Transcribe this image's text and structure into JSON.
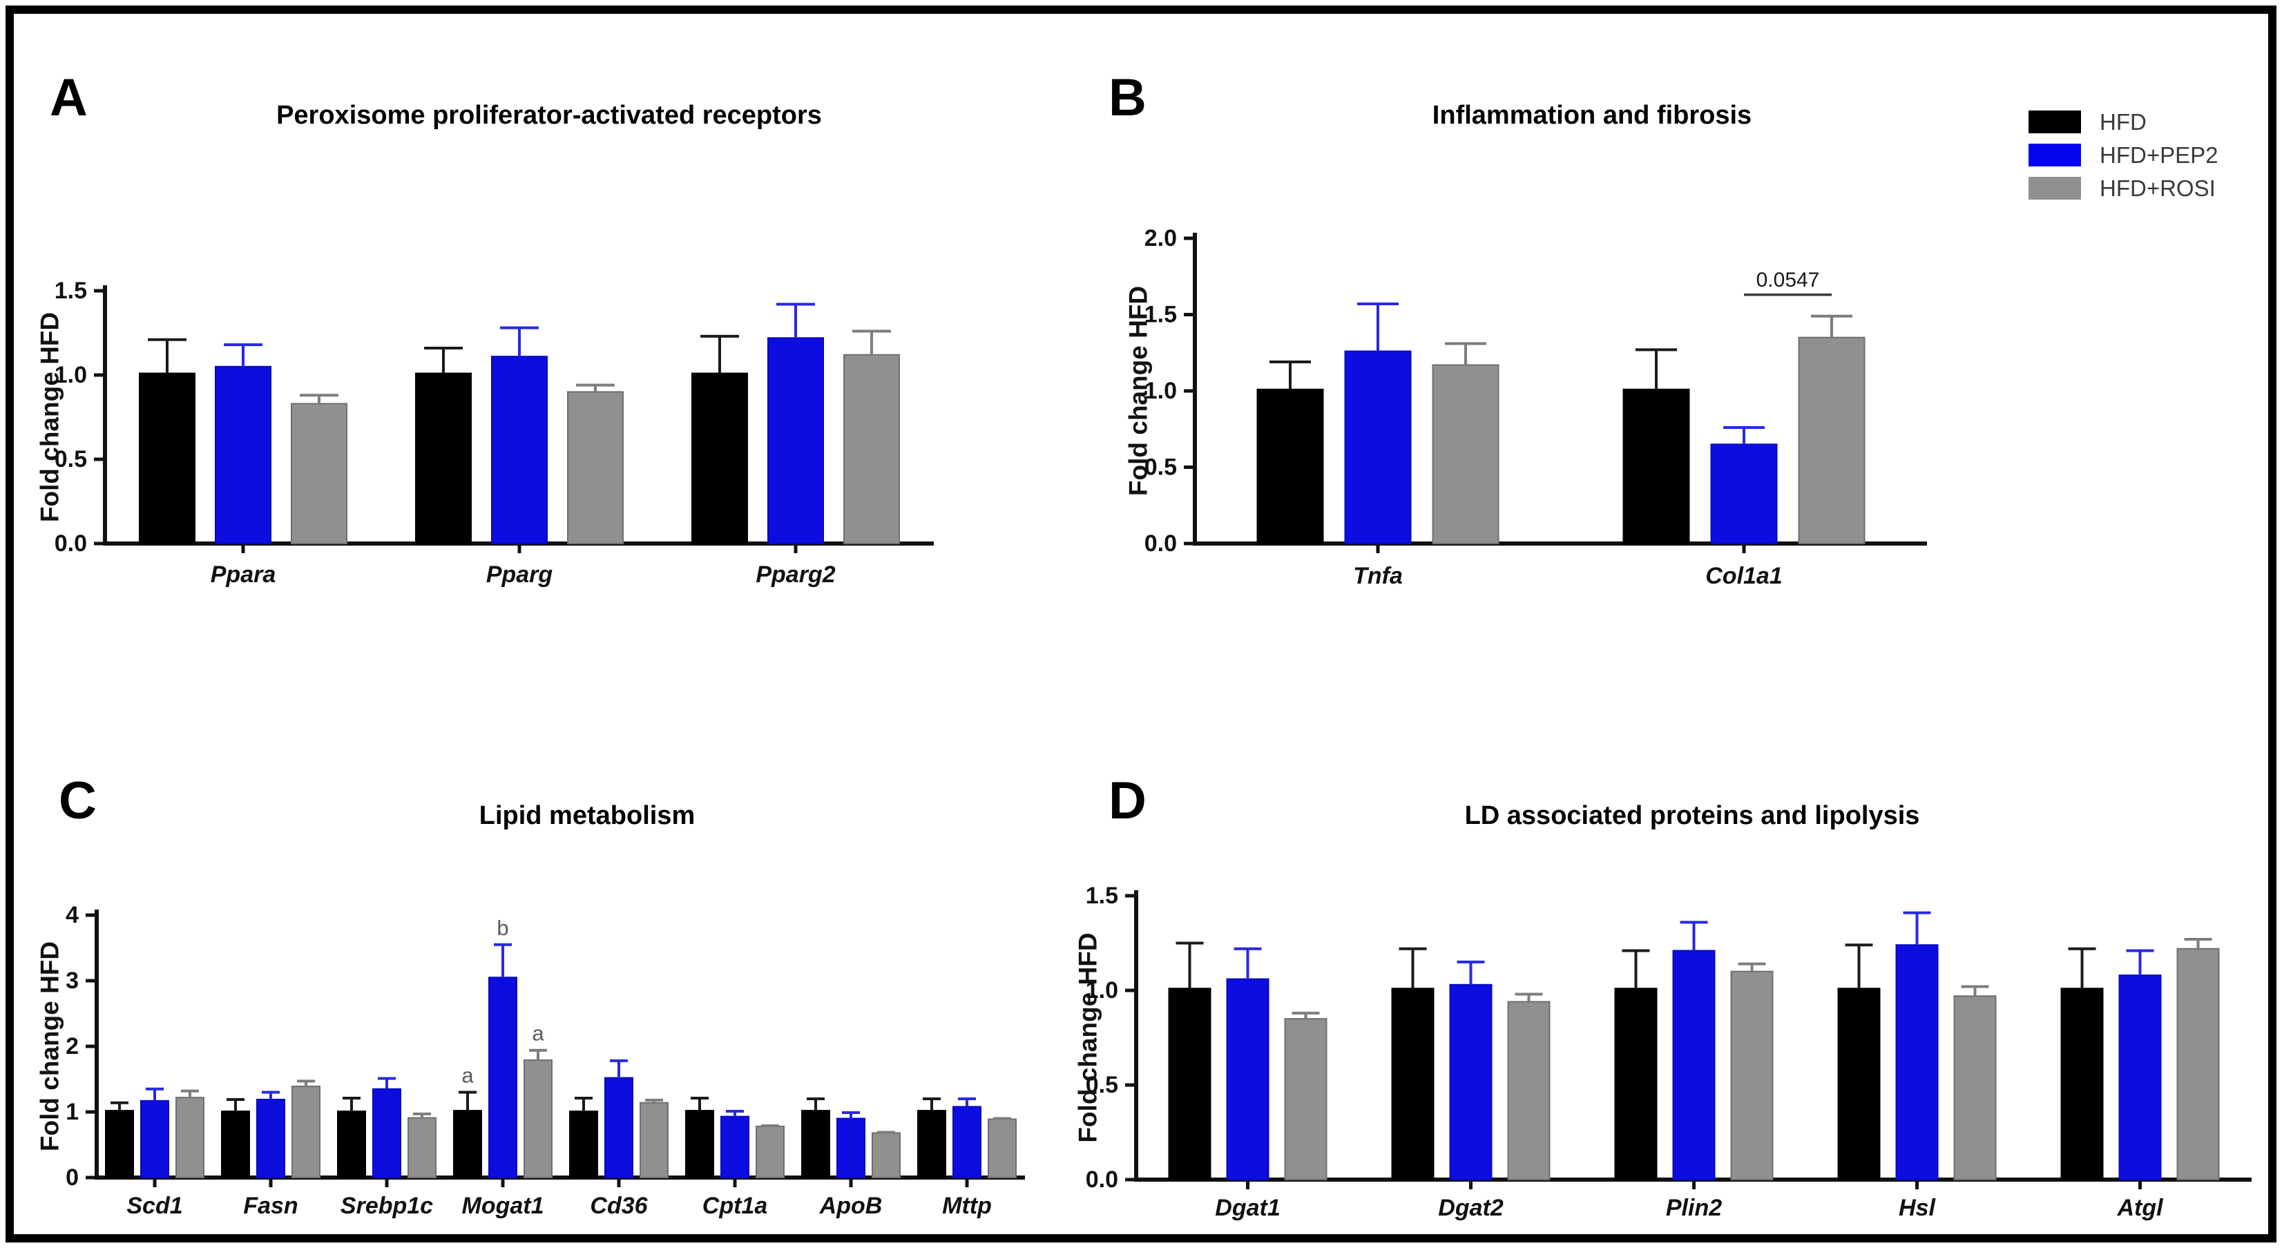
{
  "legend": {
    "items": [
      {
        "label": "HFD",
        "color": "#000000"
      },
      {
        "label": "HFD+PEP2",
        "color": "#0505f0"
      },
      {
        "label": "HFD+ROSI",
        "color": "#909090"
      }
    ]
  },
  "chart_data": [
    {
      "type": "bar",
      "panel": "A",
      "title": "Peroxisome proliferator-activated receptors",
      "ylabel": "Fold change HFD",
      "ylim": [
        0,
        1.5
      ],
      "yticks": [
        "0.0",
        "0.5",
        "1.0",
        "1.5"
      ],
      "grid": false,
      "categories": [
        "Ppara",
        "Pparg",
        "Pparg2"
      ],
      "series": [
        {
          "name": "HFD",
          "color": "#000000",
          "edge": "#000000",
          "error_color": "#1a1a1a",
          "values": [
            1.01,
            1.01,
            1.01
          ],
          "errors": [
            0.2,
            0.15,
            0.22
          ]
        },
        {
          "name": "HFD+PEP2",
          "color": "#0d0de0",
          "edge": "#0909bd",
          "error_color": "#2828e6",
          "values": [
            1.05,
            1.11,
            1.22
          ],
          "errors": [
            0.13,
            0.17,
            0.2
          ]
        },
        {
          "name": "HFD+ROSI",
          "color": "#909090",
          "edge": "#6f6f6f",
          "error_color": "#7d7d7d",
          "values": [
            0.83,
            0.9,
            1.12
          ],
          "errors": [
            0.05,
            0.04,
            0.14
          ]
        }
      ],
      "bar_annotations": [],
      "comparisons": []
    },
    {
      "type": "bar",
      "panel": "B",
      "title": "Inflammation and fibrosis",
      "ylabel": "Fold change HFD",
      "ylim": [
        0,
        2.0
      ],
      "yticks": [
        "0.0",
        "0.5",
        "1.0",
        "1.5",
        "2.0"
      ],
      "grid": false,
      "categories": [
        "Tnfa",
        "Col1a1"
      ],
      "series": [
        {
          "name": "HFD",
          "color": "#000000",
          "edge": "#000000",
          "error_color": "#1a1a1a",
          "values": [
            1.01,
            1.01
          ],
          "errors": [
            0.18,
            0.26
          ]
        },
        {
          "name": "HFD+PEP2",
          "color": "#0d0de0",
          "edge": "#0909bd",
          "error_color": "#2828e6",
          "values": [
            1.26,
            0.65
          ],
          "errors": [
            0.31,
            0.11
          ]
        },
        {
          "name": "HFD+ROSI",
          "color": "#909090",
          "edge": "#6f6f6f",
          "error_color": "#7d7d7d",
          "values": [
            1.17,
            1.35
          ],
          "errors": [
            0.14,
            0.14
          ]
        }
      ],
      "bar_annotations": [],
      "comparisons": [
        {
          "category": "Col1a1",
          "from": "HFD+PEP2",
          "to": "HFD+ROSI",
          "label": "0.0547",
          "line_value": 1.63
        }
      ]
    },
    {
      "type": "bar",
      "panel": "C",
      "title": "Lipid metabolism",
      "ylabel": "Fold change HFD",
      "ylim": [
        0,
        4
      ],
      "yticks": [
        "0",
        "1",
        "2",
        "3",
        "4"
      ],
      "grid": false,
      "categories": [
        "Scd1",
        "Fasn",
        "Srebp1c",
        "Mogat1",
        "Cd36",
        "Cpt1a",
        "ApoB",
        "Mttp"
      ],
      "series": [
        {
          "name": "HFD",
          "color": "#000000",
          "edge": "#000000",
          "error_color": "#1a1a1a",
          "values": [
            1.02,
            1.01,
            1.01,
            1.02,
            1.01,
            1.02,
            1.02,
            1.02
          ],
          "errors": [
            0.12,
            0.18,
            0.2,
            0.28,
            0.2,
            0.19,
            0.18,
            0.18
          ]
        },
        {
          "name": "HFD+PEP2",
          "color": "#0d0de0",
          "edge": "#0909bd",
          "error_color": "#2828e6",
          "values": [
            1.17,
            1.19,
            1.35,
            3.05,
            1.52,
            0.93,
            0.9,
            1.08
          ],
          "errors": [
            0.18,
            0.11,
            0.16,
            0.5,
            0.26,
            0.08,
            0.09,
            0.12
          ]
        },
        {
          "name": "HFD+ROSI",
          "color": "#909090",
          "edge": "#6f6f6f",
          "error_color": "#7d7d7d",
          "values": [
            1.22,
            1.39,
            0.91,
            1.79,
            1.14,
            0.78,
            0.68,
            0.89
          ],
          "errors": [
            0.1,
            0.08,
            0.06,
            0.15,
            0.04,
            0.01,
            0.01,
            0.01
          ]
        }
      ],
      "bar_annotations": [
        {
          "category": "Mogat1",
          "series": "HFD",
          "text": "a"
        },
        {
          "category": "Mogat1",
          "series": "HFD+PEP2",
          "text": "b"
        },
        {
          "category": "Mogat1",
          "series": "HFD+ROSI",
          "text": "a"
        }
      ],
      "comparisons": []
    },
    {
      "type": "bar",
      "panel": "D",
      "title": "LD associated proteins and lipolysis",
      "ylabel": "Fold change HFD",
      "ylim": [
        0,
        1.5
      ],
      "yticks": [
        "0.0",
        "0.5",
        "1.0",
        "1.5"
      ],
      "grid": false,
      "categories": [
        "Dgat1",
        "Dgat2",
        "Plin2",
        "Hsl",
        "Atgl"
      ],
      "series": [
        {
          "name": "HFD",
          "color": "#000000",
          "edge": "#000000",
          "error_color": "#1a1a1a",
          "values": [
            1.01,
            1.01,
            1.01,
            1.01,
            1.01
          ],
          "errors": [
            0.24,
            0.21,
            0.2,
            0.23,
            0.21
          ]
        },
        {
          "name": "HFD+PEP2",
          "color": "#0d0de0",
          "edge": "#0909bd",
          "error_color": "#2828e6",
          "values": [
            1.06,
            1.03,
            1.21,
            1.24,
            1.08
          ],
          "errors": [
            0.16,
            0.12,
            0.15,
            0.17,
            0.13
          ]
        },
        {
          "name": "HFD+ROSI",
          "color": "#909090",
          "edge": "#6f6f6f",
          "error_color": "#7d7d7d",
          "values": [
            0.85,
            0.94,
            1.1,
            0.97,
            1.22
          ],
          "errors": [
            0.03,
            0.04,
            0.04,
            0.05,
            0.05
          ]
        }
      ],
      "bar_annotations": [],
      "comparisons": []
    }
  ]
}
